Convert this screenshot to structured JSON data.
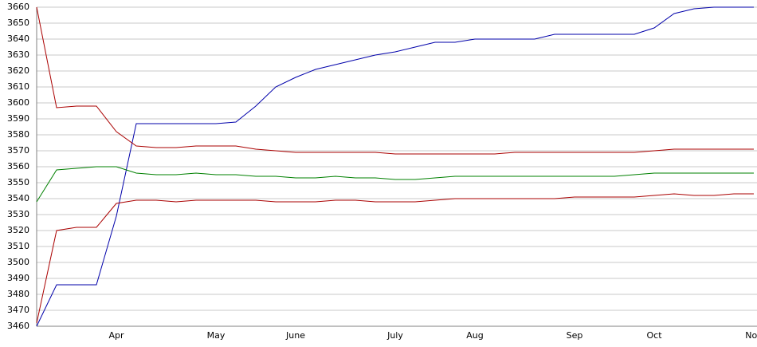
{
  "chart_data": {
    "type": "line",
    "categories": [
      null,
      null,
      null,
      null,
      "Apr",
      null,
      null,
      null,
      null,
      "May",
      null,
      null,
      null,
      "June",
      null,
      null,
      null,
      null,
      "July",
      null,
      null,
      null,
      "Aug",
      null,
      null,
      null,
      null,
      "Sep",
      null,
      null,
      null,
      "Oct",
      null,
      null,
      null,
      null,
      "Nov"
    ],
    "series": [
      {
        "color": "#0000aa",
        "values": [
          3460,
          3486,
          3486,
          3486,
          3529,
          3587,
          3587,
          3587,
          3587,
          3587,
          3588,
          3598,
          3610,
          3616,
          3621,
          3624,
          3627,
          3630,
          3632,
          3635,
          3638,
          3638,
          3640,
          3640,
          3640,
          3640,
          3643,
          3643,
          3643,
          3643,
          3643,
          3647,
          3656,
          3659,
          3660,
          3660,
          3660
        ]
      },
      {
        "color": "#aa0000",
        "values": [
          3660,
          3597,
          3598,
          3598,
          3582,
          3573,
          3572,
          3572,
          3573,
          3573,
          3573,
          3571,
          3570,
          3569,
          3569,
          3569,
          3569,
          3569,
          3568,
          3568,
          3568,
          3568,
          3568,
          3568,
          3569,
          3569,
          3569,
          3569,
          3569,
          3569,
          3569,
          3570,
          3571,
          3571,
          3571,
          3571,
          3571
        ]
      },
      {
        "color": "#008000",
        "values": [
          3538,
          3558,
          3559,
          3560,
          3560,
          3556,
          3555,
          3555,
          3556,
          3555,
          3555,
          3554,
          3554,
          3553,
          3553,
          3554,
          3553,
          3553,
          3552,
          3552,
          3553,
          3554,
          3554,
          3554,
          3554,
          3554,
          3554,
          3554,
          3554,
          3554,
          3555,
          3556,
          3556,
          3556,
          3556,
          3556,
          3556
        ]
      },
      {
        "color": "#aa0000",
        "values": [
          3462,
          3520,
          3522,
          3522,
          3537,
          3539,
          3539,
          3538,
          3539,
          3539,
          3539,
          3539,
          3538,
          3538,
          3538,
          3539,
          3539,
          3538,
          3538,
          3538,
          3539,
          3540,
          3540,
          3540,
          3540,
          3540,
          3540,
          3541,
          3541,
          3541,
          3541,
          3542,
          3543,
          3542,
          3542,
          3543,
          3543
        ]
      }
    ],
    "ylim": [
      3460,
      3660
    ],
    "yticks": [
      3460,
      3470,
      3480,
      3490,
      3500,
      3510,
      3520,
      3530,
      3540,
      3550,
      3560,
      3570,
      3580,
      3590,
      3600,
      3610,
      3620,
      3630,
      3640,
      3650,
      3660
    ],
    "grid": true
  }
}
